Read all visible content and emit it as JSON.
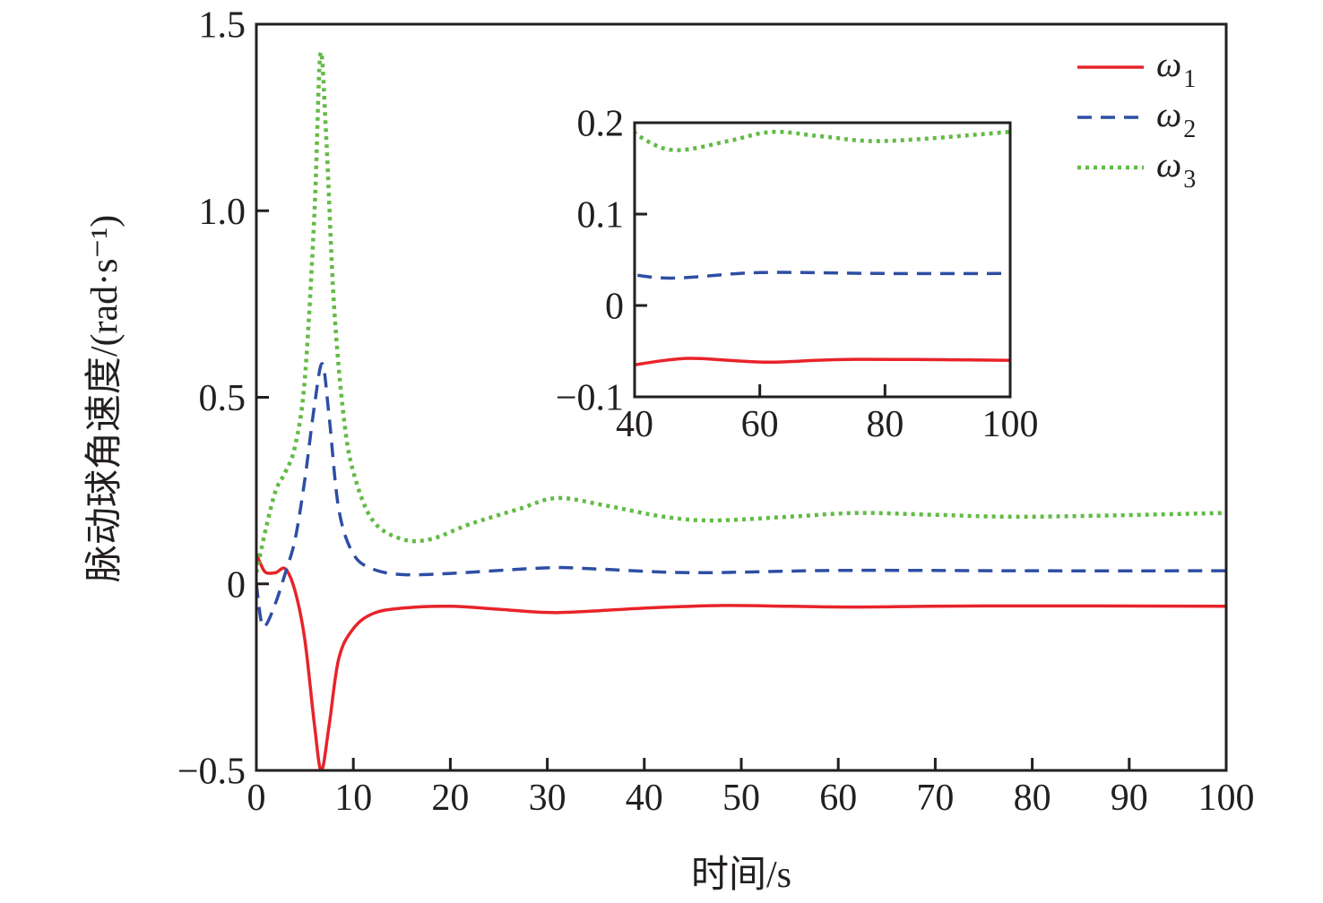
{
  "chart_data": {
    "type": "line",
    "xlabel": "时间/s",
    "ylabel": "脉动球角速度/(rad·s⁻¹)",
    "xlim": [
      0,
      100
    ],
    "ylim": [
      -0.5,
      1.5
    ],
    "xticks": [
      "0",
      "10",
      "20",
      "30",
      "40",
      "50",
      "60",
      "70",
      "80",
      "90",
      "100"
    ],
    "yticks": [
      "−0.5",
      "0",
      "0.5",
      "1.0",
      "1.5"
    ],
    "xtick_values": [
      0,
      10,
      20,
      30,
      40,
      50,
      60,
      70,
      80,
      90,
      100
    ],
    "ytick_values": [
      -0.5,
      0,
      0.5,
      1.0,
      1.5
    ],
    "legend_position": "top-right",
    "series": [
      {
        "name": "ω",
        "sub": "1",
        "color": "#e8232a",
        "style": "solid",
        "x": [
          0,
          0.5,
          1,
          2,
          3,
          4,
          5,
          6,
          6.7,
          7.5,
          8.5,
          10,
          12,
          15,
          20,
          25,
          31,
          40,
          48,
          55,
          62,
          75,
          100
        ],
        "y": [
          0.08,
          0.05,
          0.03,
          0.03,
          0.04,
          -0.02,
          -0.15,
          -0.38,
          -0.5,
          -0.38,
          -0.2,
          -0.12,
          -0.08,
          -0.065,
          -0.06,
          -0.068,
          -0.077,
          -0.065,
          -0.058,
          -0.06,
          -0.062,
          -0.059,
          -0.06
        ]
      },
      {
        "name": "ω",
        "sub": "2",
        "color": "#2e4ea3",
        "style": "dashed",
        "x": [
          0,
          0.5,
          1,
          2,
          3,
          4,
          5,
          6,
          6.8,
          7.5,
          8.5,
          10,
          12,
          15,
          20,
          30,
          35,
          45,
          60,
          80,
          100
        ],
        "y": [
          0,
          -0.1,
          -0.11,
          -0.05,
          0.03,
          0.12,
          0.28,
          0.48,
          0.59,
          0.45,
          0.2,
          0.08,
          0.04,
          0.025,
          0.028,
          0.043,
          0.04,
          0.03,
          0.036,
          0.035,
          0.035
        ]
      },
      {
        "name": "ω",
        "sub": "3",
        "color": "#62bb46",
        "style": "dotted",
        "x": [
          0,
          1,
          2,
          3,
          4,
          5,
          6,
          6.6,
          7.2,
          8,
          9,
          10,
          12,
          15,
          18,
          22,
          27,
          31,
          36,
          42,
          47,
          55,
          62,
          70,
          80,
          100
        ],
        "y": [
          0.03,
          0.15,
          0.25,
          0.3,
          0.37,
          0.55,
          1.0,
          1.42,
          1.2,
          0.75,
          0.45,
          0.3,
          0.17,
          0.12,
          0.12,
          0.16,
          0.2,
          0.23,
          0.21,
          0.18,
          0.17,
          0.18,
          0.19,
          0.185,
          0.18,
          0.19
        ]
      }
    ],
    "inset": {
      "xlim": [
        40,
        100
      ],
      "ylim": [
        -0.1,
        0.2
      ],
      "xticks": [
        "40",
        "60",
        "80",
        "100"
      ],
      "yticks": [
        "−0.1",
        "0",
        "0.1",
        "0.2"
      ],
      "xtick_values": [
        40,
        60,
        80,
        100
      ],
      "ytick_values": [
        -0.1,
        0,
        0.1,
        0.2
      ]
    }
  }
}
